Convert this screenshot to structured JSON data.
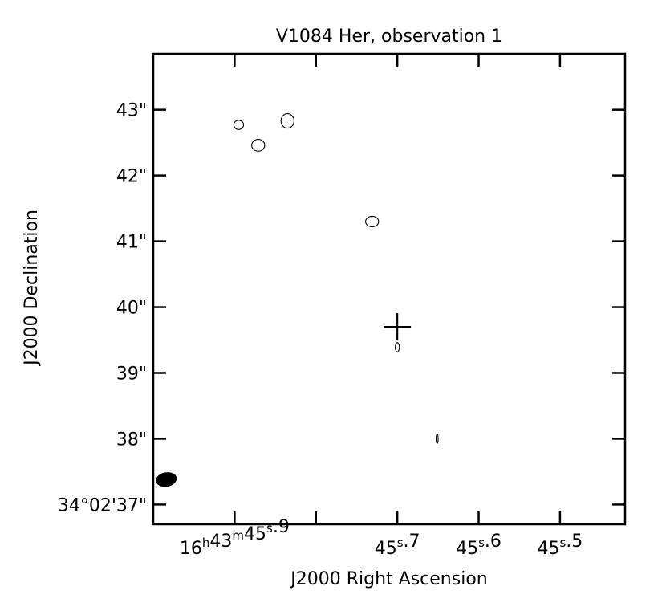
{
  "chart_data": {
    "type": "contour",
    "title": "V1084 Her, observation 1",
    "xlabel": "J2000 Right Ascension",
    "ylabel": "J2000 Declination",
    "x_ticks": [
      {
        "value": 45.9,
        "parts": [
          [
            "16",
            "h"
          ],
          [
            "43",
            "m"
          ],
          [
            "45",
            "s"
          ],
          [
            ".9",
            ""
          ]
        ]
      },
      {
        "value": 45.7,
        "parts": [
          [
            "45",
            "s"
          ],
          [
            ".7",
            ""
          ]
        ]
      },
      {
        "value": 45.6,
        "parts": [
          [
            "45",
            "s"
          ],
          [
            ".6",
            ""
          ]
        ]
      },
      {
        "value": 45.5,
        "parts": [
          [
            "45",
            "s"
          ],
          [
            ".5",
            ""
          ]
        ]
      }
    ],
    "x_minor_ticks": [
      45.8
    ],
    "y_ticks": [
      {
        "value": 37,
        "label": "34°02'37\""
      },
      {
        "value": 38,
        "label": "38\""
      },
      {
        "value": 39,
        "label": "39\""
      },
      {
        "value": 40,
        "label": "40\""
      },
      {
        "value": 41,
        "label": "41\""
      },
      {
        "value": 42,
        "label": "42\""
      },
      {
        "value": 43,
        "label": "43\""
      }
    ],
    "xlim": [
      46.0,
      45.42
    ],
    "ylim": [
      36.7,
      43.85
    ],
    "source_marker": {
      "ra_s": 45.7,
      "dec_s": 39.7,
      "shape": "cross"
    },
    "beam": {
      "ra_s": 45.984,
      "dec_s": 37.38,
      "major_arcsec": 0.32,
      "minor_arcsec": 0.22,
      "pa_deg": -10,
      "fill": "#000000"
    },
    "contours": [
      {
        "ra_s": 45.895,
        "dec_s": 42.77,
        "w": 0.012,
        "h": 0.14
      },
      {
        "ra_s": 45.871,
        "dec_s": 42.46,
        "w": 0.016,
        "h": 0.18
      },
      {
        "ra_s": 45.835,
        "dec_s": 42.83,
        "w": 0.016,
        "h": 0.22
      },
      {
        "ra_s": 45.731,
        "dec_s": 41.3,
        "w": 0.016,
        "h": 0.16
      },
      {
        "ra_s": 45.7,
        "dec_s": 39.39,
        "w": 0.005,
        "h": 0.14
      },
      {
        "ra_s": 45.651,
        "dec_s": 38.0,
        "w": 0.0025,
        "h": 0.14
      }
    ]
  }
}
